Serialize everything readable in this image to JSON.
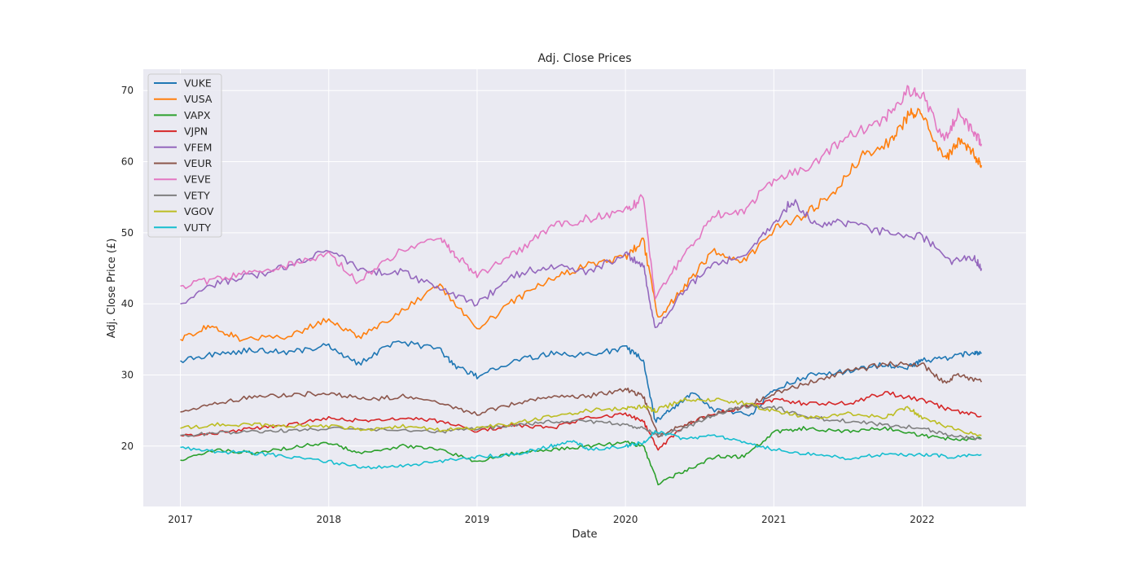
{
  "chart_data": {
    "type": "line",
    "title": "Adj. Close Prices",
    "xlabel": "Date",
    "ylabel": "Adj. Close Price (£)",
    "xlim": [
      2016.75,
      2022.7
    ],
    "ylim": [
      11.5,
      73
    ],
    "x_ticks": [
      2017,
      2018,
      2019,
      2020,
      2021,
      2022
    ],
    "x_tick_labels": [
      "2017",
      "2018",
      "2019",
      "2020",
      "2021",
      "2022"
    ],
    "y_ticks": [
      20,
      30,
      40,
      50,
      60,
      70
    ],
    "y_tick_labels": [
      "20",
      "30",
      "40",
      "50",
      "60",
      "70"
    ],
    "grid": true,
    "legend_position": "top-left",
    "background": "#eaeaf2",
    "series": [
      {
        "name": "VUKE",
        "color": "#1f77b4",
        "points": [
          [
            2017.0,
            32.0
          ],
          [
            2017.25,
            33.0
          ],
          [
            2017.5,
            33.5
          ],
          [
            2017.75,
            33.2
          ],
          [
            2018.0,
            34.2
          ],
          [
            2018.2,
            31.5
          ],
          [
            2018.45,
            34.8
          ],
          [
            2018.75,
            33.5
          ],
          [
            2018.85,
            31.2
          ],
          [
            2019.0,
            29.8
          ],
          [
            2019.25,
            32.0
          ],
          [
            2019.5,
            33.0
          ],
          [
            2019.75,
            32.8
          ],
          [
            2020.0,
            33.8
          ],
          [
            2020.12,
            32.2
          ],
          [
            2020.2,
            23.5
          ],
          [
            2020.3,
            25.0
          ],
          [
            2020.45,
            27.5
          ],
          [
            2020.6,
            25.0
          ],
          [
            2020.85,
            24.5
          ],
          [
            2021.0,
            28.0
          ],
          [
            2021.25,
            30.0
          ],
          [
            2021.5,
            30.5
          ],
          [
            2021.75,
            31.5
          ],
          [
            2021.9,
            31.0
          ],
          [
            2022.0,
            32.0
          ],
          [
            2022.2,
            32.5
          ],
          [
            2022.35,
            33.2
          ],
          [
            2022.4,
            33.0
          ]
        ]
      },
      {
        "name": "VUSA",
        "color": "#ff7f0e",
        "points": [
          [
            2017.0,
            35.0
          ],
          [
            2017.2,
            37.0
          ],
          [
            2017.4,
            35.0
          ],
          [
            2017.75,
            35.5
          ],
          [
            2018.0,
            38.0
          ],
          [
            2018.2,
            35.2
          ],
          [
            2018.45,
            38.5
          ],
          [
            2018.75,
            42.5
          ],
          [
            2019.0,
            36.3
          ],
          [
            2019.25,
            40.5
          ],
          [
            2019.5,
            43.5
          ],
          [
            2019.75,
            45.5
          ],
          [
            2020.0,
            46.5
          ],
          [
            2020.12,
            49.0
          ],
          [
            2020.22,
            38.0
          ],
          [
            2020.4,
            42.5
          ],
          [
            2020.6,
            47.5
          ],
          [
            2020.8,
            46.0
          ],
          [
            2021.0,
            50.5
          ],
          [
            2021.2,
            52.5
          ],
          [
            2021.4,
            55.5
          ],
          [
            2021.6,
            61.0
          ],
          [
            2021.8,
            63.0
          ],
          [
            2021.92,
            67.0
          ],
          [
            2022.0,
            66.5
          ],
          [
            2022.15,
            60.0
          ],
          [
            2022.25,
            63.0
          ],
          [
            2022.35,
            61.0
          ],
          [
            2022.4,
            59.5
          ]
        ]
      },
      {
        "name": "VAPX",
        "color": "#2ca02c",
        "points": [
          [
            2017.0,
            18.0
          ],
          [
            2017.25,
            19.5
          ],
          [
            2017.5,
            19.0
          ],
          [
            2017.75,
            19.8
          ],
          [
            2018.0,
            20.5
          ],
          [
            2018.2,
            19.0
          ],
          [
            2018.5,
            20.0
          ],
          [
            2018.75,
            19.5
          ],
          [
            2019.0,
            17.8
          ],
          [
            2019.25,
            19.0
          ],
          [
            2019.5,
            19.5
          ],
          [
            2019.75,
            20.0
          ],
          [
            2020.0,
            20.5
          ],
          [
            2020.12,
            20.0
          ],
          [
            2020.22,
            14.8
          ],
          [
            2020.4,
            16.5
          ],
          [
            2020.6,
            18.5
          ],
          [
            2020.8,
            18.5
          ],
          [
            2021.0,
            22.0
          ],
          [
            2021.2,
            22.5
          ],
          [
            2021.5,
            22.0
          ],
          [
            2021.75,
            22.5
          ],
          [
            2022.0,
            21.5
          ],
          [
            2022.2,
            21.0
          ],
          [
            2022.4,
            21.0
          ]
        ]
      },
      {
        "name": "VJPN",
        "color": "#d62728",
        "points": [
          [
            2017.0,
            21.5
          ],
          [
            2017.25,
            21.8
          ],
          [
            2017.5,
            22.5
          ],
          [
            2017.75,
            23.0
          ],
          [
            2018.0,
            24.0
          ],
          [
            2018.25,
            23.5
          ],
          [
            2018.5,
            24.0
          ],
          [
            2018.75,
            23.5
          ],
          [
            2019.0,
            22.0
          ],
          [
            2019.25,
            23.0
          ],
          [
            2019.5,
            22.5
          ],
          [
            2019.75,
            24.0
          ],
          [
            2020.0,
            24.5
          ],
          [
            2020.12,
            23.5
          ],
          [
            2020.22,
            19.5
          ],
          [
            2020.4,
            23.0
          ],
          [
            2020.6,
            24.5
          ],
          [
            2020.8,
            25.5
          ],
          [
            2021.0,
            26.5
          ],
          [
            2021.2,
            26.0
          ],
          [
            2021.5,
            26.0
          ],
          [
            2021.75,
            27.5
          ],
          [
            2022.0,
            26.5
          ],
          [
            2022.2,
            25.0
          ],
          [
            2022.4,
            24.2
          ]
        ]
      },
      {
        "name": "VFEM",
        "color": "#9467bd",
        "points": [
          [
            2017.0,
            40.0
          ],
          [
            2017.25,
            43.0
          ],
          [
            2017.5,
            44.0
          ],
          [
            2017.75,
            45.5
          ],
          [
            2018.0,
            47.5
          ],
          [
            2018.25,
            44.5
          ],
          [
            2018.5,
            44.5
          ],
          [
            2018.75,
            42.0
          ],
          [
            2019.0,
            40.0
          ],
          [
            2019.25,
            44.0
          ],
          [
            2019.5,
            45.5
          ],
          [
            2019.75,
            44.5
          ],
          [
            2020.0,
            47.0
          ],
          [
            2020.12,
            45.5
          ],
          [
            2020.2,
            36.5
          ],
          [
            2020.4,
            42.0
          ],
          [
            2020.6,
            45.5
          ],
          [
            2020.8,
            47.0
          ],
          [
            2021.0,
            51.0
          ],
          [
            2021.12,
            54.5
          ],
          [
            2021.3,
            51.0
          ],
          [
            2021.5,
            51.5
          ],
          [
            2021.75,
            50.0
          ],
          [
            2022.0,
            49.5
          ],
          [
            2022.2,
            46.0
          ],
          [
            2022.35,
            46.5
          ],
          [
            2022.4,
            45.0
          ]
        ]
      },
      {
        "name": "VEUR",
        "color": "#8c564b",
        "points": [
          [
            2017.0,
            24.8
          ],
          [
            2017.25,
            26.0
          ],
          [
            2017.5,
            27.0
          ],
          [
            2017.75,
            27.2
          ],
          [
            2018.0,
            27.5
          ],
          [
            2018.25,
            26.5
          ],
          [
            2018.5,
            27.0
          ],
          [
            2018.75,
            26.0
          ],
          [
            2019.0,
            24.5
          ],
          [
            2019.25,
            26.0
          ],
          [
            2019.5,
            27.0
          ],
          [
            2019.75,
            27.0
          ],
          [
            2020.0,
            28.0
          ],
          [
            2020.12,
            27.0
          ],
          [
            2020.22,
            21.5
          ],
          [
            2020.4,
            23.0
          ],
          [
            2020.6,
            24.5
          ],
          [
            2020.8,
            25.5
          ],
          [
            2021.0,
            27.5
          ],
          [
            2021.25,
            29.0
          ],
          [
            2021.5,
            30.5
          ],
          [
            2021.75,
            31.5
          ],
          [
            2022.0,
            31.5
          ],
          [
            2022.15,
            29.0
          ],
          [
            2022.25,
            30.0
          ],
          [
            2022.4,
            29.0
          ]
        ]
      },
      {
        "name": "VEVE",
        "color": "#e377c2",
        "points": [
          [
            2017.0,
            42.5
          ],
          [
            2017.25,
            43.5
          ],
          [
            2017.5,
            44.5
          ],
          [
            2017.75,
            45.5
          ],
          [
            2018.0,
            47.0
          ],
          [
            2018.2,
            43.0
          ],
          [
            2018.45,
            47.0
          ],
          [
            2018.75,
            49.5
          ],
          [
            2018.85,
            47.0
          ],
          [
            2019.0,
            44.0
          ],
          [
            2019.25,
            47.0
          ],
          [
            2019.5,
            51.0
          ],
          [
            2019.75,
            52.0
          ],
          [
            2020.0,
            53.0
          ],
          [
            2020.12,
            55.0
          ],
          [
            2020.2,
            41.0
          ],
          [
            2020.4,
            47.0
          ],
          [
            2020.6,
            52.5
          ],
          [
            2020.8,
            53.0
          ],
          [
            2021.0,
            57.5
          ],
          [
            2021.25,
            59.5
          ],
          [
            2021.5,
            63.5
          ],
          [
            2021.75,
            66.0
          ],
          [
            2021.9,
            70.0
          ],
          [
            2022.0,
            69.5
          ],
          [
            2022.15,
            63.0
          ],
          [
            2022.25,
            67.0
          ],
          [
            2022.35,
            64.0
          ],
          [
            2022.4,
            62.5
          ]
        ]
      },
      {
        "name": "VETY",
        "color": "#7f7f7f",
        "points": [
          [
            2017.0,
            21.5
          ],
          [
            2017.25,
            21.8
          ],
          [
            2017.5,
            22.0
          ],
          [
            2017.75,
            22.2
          ],
          [
            2018.0,
            22.5
          ],
          [
            2018.5,
            22.3
          ],
          [
            2018.75,
            22.0
          ],
          [
            2019.0,
            22.5
          ],
          [
            2019.25,
            22.8
          ],
          [
            2019.5,
            23.5
          ],
          [
            2019.75,
            23.5
          ],
          [
            2020.0,
            23.0
          ],
          [
            2020.12,
            22.5
          ],
          [
            2020.22,
            21.5
          ],
          [
            2020.4,
            22.5
          ],
          [
            2020.6,
            24.5
          ],
          [
            2020.8,
            25.5
          ],
          [
            2021.0,
            25.5
          ],
          [
            2021.25,
            24.0
          ],
          [
            2021.5,
            23.5
          ],
          [
            2021.75,
            23.0
          ],
          [
            2022.0,
            22.5
          ],
          [
            2022.2,
            21.5
          ],
          [
            2022.4,
            21.0
          ]
        ]
      },
      {
        "name": "VGOV",
        "color": "#bcbd22",
        "points": [
          [
            2017.0,
            22.5
          ],
          [
            2017.25,
            23.0
          ],
          [
            2017.5,
            23.0
          ],
          [
            2017.75,
            22.8
          ],
          [
            2018.0,
            22.8
          ],
          [
            2018.25,
            22.3
          ],
          [
            2018.5,
            22.8
          ],
          [
            2018.75,
            22.3
          ],
          [
            2019.0,
            22.5
          ],
          [
            2019.25,
            23.2
          ],
          [
            2019.5,
            24.2
          ],
          [
            2019.75,
            25.0
          ],
          [
            2020.0,
            25.3
          ],
          [
            2020.12,
            25.5
          ],
          [
            2020.2,
            25.0
          ],
          [
            2020.4,
            26.5
          ],
          [
            2020.6,
            26.5
          ],
          [
            2020.8,
            26.0
          ],
          [
            2021.0,
            25.0
          ],
          [
            2021.25,
            24.0
          ],
          [
            2021.5,
            24.5
          ],
          [
            2021.75,
            24.0
          ],
          [
            2021.9,
            25.5
          ],
          [
            2022.0,
            24.0
          ],
          [
            2022.2,
            22.5
          ],
          [
            2022.4,
            21.5
          ]
        ]
      },
      {
        "name": "VUTY",
        "color": "#17becf",
        "points": [
          [
            2017.0,
            19.8
          ],
          [
            2017.25,
            19.2
          ],
          [
            2017.5,
            19.0
          ],
          [
            2017.75,
            18.5
          ],
          [
            2018.0,
            17.8
          ],
          [
            2018.25,
            17.0
          ],
          [
            2018.5,
            17.2
          ],
          [
            2018.75,
            17.8
          ],
          [
            2019.0,
            18.5
          ],
          [
            2019.25,
            18.8
          ],
          [
            2019.5,
            20.0
          ],
          [
            2019.65,
            20.8
          ],
          [
            2019.75,
            19.5
          ],
          [
            2020.0,
            20.0
          ],
          [
            2020.12,
            20.5
          ],
          [
            2020.2,
            22.0
          ],
          [
            2020.4,
            21.0
          ],
          [
            2020.6,
            21.5
          ],
          [
            2020.8,
            20.5
          ],
          [
            2021.0,
            19.5
          ],
          [
            2021.25,
            18.8
          ],
          [
            2021.5,
            18.3
          ],
          [
            2021.75,
            18.8
          ],
          [
            2022.0,
            18.8
          ],
          [
            2022.2,
            18.5
          ],
          [
            2022.4,
            18.8
          ]
        ]
      }
    ]
  }
}
